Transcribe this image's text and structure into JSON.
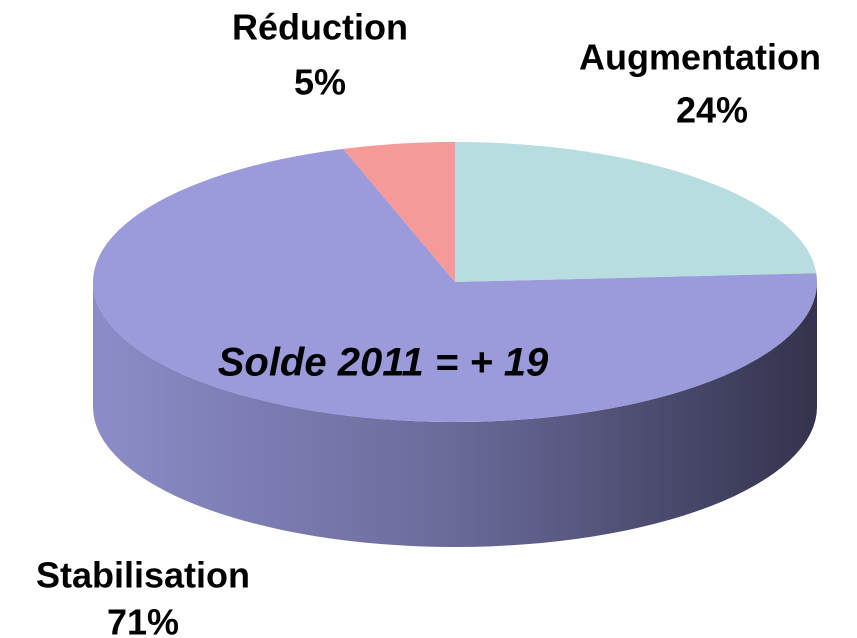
{
  "chart_data": {
    "type": "pie",
    "categories": [
      "Augmentation",
      "Stabilisation",
      "Réduction"
    ],
    "values": [
      24,
      71,
      5
    ],
    "value_labels": [
      "24%",
      "71%",
      "5%"
    ],
    "colors": [
      "#b8dde0",
      "#9b9bdc",
      "#f59a98"
    ],
    "annotation": "Solde 2011 = + 19"
  }
}
